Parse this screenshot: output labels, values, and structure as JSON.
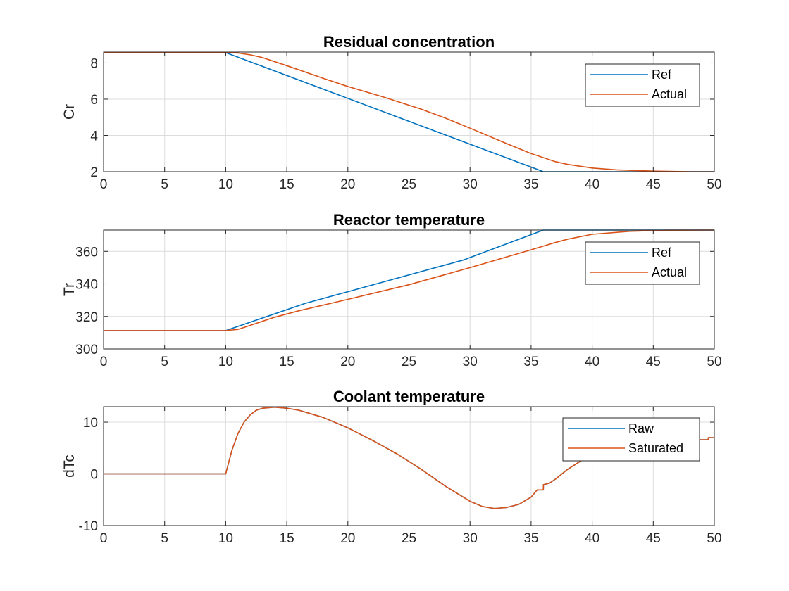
{
  "figure": {
    "background": "#ffffff"
  },
  "colors": {
    "series1": "#0072BD",
    "series2": "#D95319",
    "grid": "#DCDCDC",
    "axis": "#262626"
  },
  "chart_data": [
    {
      "type": "line",
      "title": "Residual concentration",
      "xlabel": "",
      "ylabel": "Cr",
      "xlim": [
        0,
        50
      ],
      "ylim": [
        2,
        8.6
      ],
      "xticks": [
        0,
        5,
        10,
        15,
        20,
        25,
        30,
        35,
        40,
        45,
        50
      ],
      "yticks": [
        2,
        4,
        6,
        8
      ],
      "grid": true,
      "legend": {
        "position": "top-right"
      },
      "series": [
        {
          "name": "Ref",
          "color": "#0072BD",
          "x": [
            0,
            10,
            36,
            50
          ],
          "y": [
            8.57,
            8.57,
            2.0,
            2.0
          ]
        },
        {
          "name": "Actual",
          "color": "#D95319",
          "x": [
            0,
            10,
            11,
            12,
            13,
            15,
            18,
            20,
            23,
            26,
            28,
            30,
            33,
            35,
            37,
            38,
            40,
            42,
            45,
            48,
            50
          ],
          "y": [
            8.57,
            8.57,
            8.55,
            8.45,
            8.3,
            7.85,
            7.15,
            6.7,
            6.1,
            5.45,
            4.95,
            4.4,
            3.55,
            3.0,
            2.55,
            2.4,
            2.2,
            2.1,
            2.03,
            2.0,
            2.0
          ]
        }
      ]
    },
    {
      "type": "line",
      "title": "Reactor temperature",
      "xlabel": "",
      "ylabel": "Tr",
      "xlim": [
        0,
        50
      ],
      "ylim": [
        300,
        373.1
      ],
      "xticks": [
        0,
        5,
        10,
        15,
        20,
        25,
        30,
        35,
        40,
        45,
        50
      ],
      "yticks": [
        300,
        320,
        340,
        360
      ],
      "grid": true,
      "legend": {
        "position": "top-right"
      },
      "series": [
        {
          "name": "Ref",
          "color": "#0072BD",
          "x": [
            0,
            10,
            16.5,
            29.5,
            36,
            50
          ],
          "y": [
            311.3,
            311.3,
            328,
            354.8,
            373.1,
            373.1
          ]
        },
        {
          "name": "Actual",
          "color": "#D95319",
          "x": [
            0,
            10,
            11,
            12,
            14,
            16,
            20,
            25,
            30,
            35,
            37,
            38,
            40,
            43,
            46,
            50
          ],
          "y": [
            311.3,
            311.3,
            312,
            314.5,
            319.5,
            323.5,
            330.5,
            339.5,
            350,
            361,
            365.5,
            367.5,
            370.5,
            372.3,
            373,
            373.1
          ]
        }
      ]
    },
    {
      "type": "line",
      "title": "Coolant temperature",
      "xlabel": "",
      "ylabel": "dTc",
      "xlim": [
        0,
        50
      ],
      "ylim": [
        -10,
        13
      ],
      "xticks": [
        0,
        5,
        10,
        15,
        20,
        25,
        30,
        35,
        40,
        45,
        50
      ],
      "yticks": [
        -10,
        0,
        10
      ],
      "grid": true,
      "legend": {
        "position": "top-right"
      },
      "series": [
        {
          "name": "Raw",
          "color": "#0072BD",
          "x": [
            0,
            10,
            10.5,
            11,
            11.5,
            12,
            12.5,
            13,
            14,
            15,
            16,
            18,
            20,
            22,
            24,
            26,
            28,
            30,
            31,
            32,
            33,
            34,
            35,
            35.5,
            36,
            36.01,
            36.5,
            37,
            38,
            39,
            40,
            42,
            44,
            46,
            48,
            49.5,
            49.51,
            50
          ],
          "y": [
            0,
            0,
            4.5,
            7.8,
            10,
            11.4,
            12.3,
            12.7,
            12.9,
            12.7,
            12.3,
            10.9,
            8.9,
            6.5,
            3.9,
            0.9,
            -2.4,
            -5.3,
            -6.3,
            -6.7,
            -6.5,
            -5.9,
            -4.5,
            -3.1,
            -3.1,
            -2.1,
            -1.8,
            -1.0,
            0.9,
            2.4,
            3.8,
            5.2,
            6.1,
            6.5,
            6.6,
            6.6,
            7.0,
            7.0
          ]
        },
        {
          "name": "Saturated",
          "color": "#D95319",
          "x": [
            0,
            10,
            10.5,
            11,
            11.5,
            12,
            12.5,
            13,
            14,
            15,
            16,
            18,
            20,
            22,
            24,
            26,
            28,
            30,
            31,
            32,
            33,
            34,
            35,
            35.5,
            36,
            36.01,
            36.5,
            37,
            38,
            39,
            40,
            42,
            44,
            46,
            48,
            49.5,
            49.51,
            50
          ],
          "y": [
            0,
            0,
            4.5,
            7.8,
            10,
            11.4,
            12.3,
            12.7,
            12.9,
            12.7,
            12.3,
            10.9,
            8.9,
            6.5,
            3.9,
            0.9,
            -2.4,
            -5.3,
            -6.3,
            -6.7,
            -6.5,
            -5.9,
            -4.5,
            -3.1,
            -3.1,
            -2.1,
            -1.8,
            -1.0,
            0.9,
            2.4,
            3.8,
            5.2,
            6.1,
            6.5,
            6.6,
            6.6,
            7.0,
            7.0
          ]
        }
      ]
    }
  ]
}
